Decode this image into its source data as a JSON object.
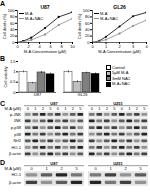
{
  "chart_data": [
    {
      "type": "line",
      "title": "U87",
      "x_label": "M-A Concentration (μM)",
      "y_label": "Cell death (%)",
      "x": [
        0,
        1,
        2.5,
        5,
        7.5,
        10
      ],
      "xlim": [
        0,
        10
      ],
      "xticks": [
        0,
        2,
        4,
        6,
        8,
        10
      ],
      "ylim": [
        0,
        100
      ],
      "yticks": [
        0,
        20,
        40,
        60,
        80,
        100
      ],
      "legend": "upper left",
      "series": [
        {
          "name": "M-A",
          "color": "#000000",
          "marker": "circle",
          "values": [
            0,
            4,
            15,
            45,
            80,
            95
          ]
        },
        {
          "name": "M-A+NAC",
          "color": "#8c8c8c",
          "marker": "square",
          "values": [
            0,
            2,
            8,
            25,
            55,
            75
          ]
        }
      ]
    },
    {
      "type": "line",
      "title": "GL26",
      "x_label": "M-A Concentration (μM)",
      "y_label": "Cell death (%)",
      "x": [
        0,
        0.5,
        1,
        2,
        3,
        4
      ],
      "xlim": [
        0,
        4
      ],
      "xticks": [
        0,
        1,
        2,
        3,
        4
      ],
      "ylim": [
        0,
        100
      ],
      "yticks": [
        0,
        20,
        40,
        60,
        80,
        100
      ],
      "legend": "upper left",
      "series": [
        {
          "name": "M-A",
          "color": "#000000",
          "marker": "circle",
          "values": [
            0,
            5,
            18,
            50,
            82,
            94
          ]
        },
        {
          "name": "M-A+NAC",
          "color": "#8c8c8c",
          "marker": "square",
          "values": [
            0,
            3,
            9,
            28,
            52,
            70
          ]
        }
      ]
    },
    {
      "type": "bar",
      "y_label": "Cell viability",
      "categories": [
        "U87",
        "GL26"
      ],
      "ylim": [
        0,
        1.5
      ],
      "yticks": [
        0,
        0.5,
        1,
        1.5
      ],
      "legend": "right",
      "series": [
        {
          "name": "Control",
          "color": "#ffffff",
          "values": [
            1,
            1
          ],
          "errors": [
            0.05,
            0.06
          ]
        },
        {
          "name": "5μM M-A",
          "color": "#bfbfbf",
          "values": [
            0.45,
            0.52
          ],
          "errors": [
            0.04,
            0.05
          ]
        },
        {
          "name": "3mM NAC",
          "color": "#7f7f7f",
          "values": [
            0.97,
            0.95
          ],
          "errors": [
            0.05,
            0.04
          ]
        },
        {
          "name": "M-A+NAC",
          "color": "#000000",
          "values": [
            0.88,
            0.9
          ],
          "errors": [
            0.06,
            0.05
          ]
        }
      ]
    }
  ],
  "panel_labels": [
    "A",
    "B",
    "C",
    "D"
  ],
  "blots": [
    {
      "row_header": "M-A (μM)",
      "groups": [
        {
          "title": "U87",
          "lanes": [
            "0",
            "1",
            "2",
            "5",
            "0",
            "1",
            "2",
            "5"
          ]
        },
        {
          "title": "U251",
          "lanes": [
            "0",
            "1",
            "2",
            "5",
            "0",
            "1",
            "2",
            "5"
          ]
        }
      ],
      "rows": [
        "p-JNK",
        "JNK",
        "p-p38",
        "p38",
        "Nrf2",
        "HO-1",
        "β-actin"
      ]
    },
    {
      "row_header": "M-A (μM)",
      "groups": [
        {
          "title": "U87",
          "lanes": [
            "0",
            "1",
            "2",
            "5"
          ]
        },
        {
          "title": "U251",
          "lanes": [
            "0",
            "1",
            "2",
            "5"
          ]
        }
      ],
      "rows": [
        "HO-1",
        "β-actin"
      ]
    }
  ]
}
